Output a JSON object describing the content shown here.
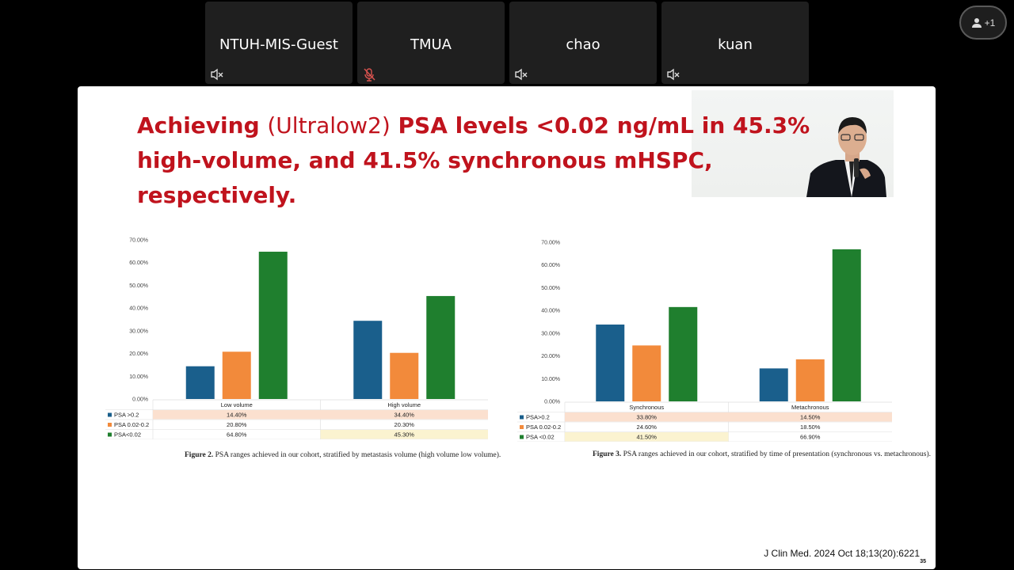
{
  "participants": [
    {
      "name": "NTUH-MIS-Guest",
      "audio": "speaker-muted-icon"
    },
    {
      "name": "TMUA",
      "audio": "mic-muted-icon",
      "audio_color": "#d9534f"
    },
    {
      "name": "chao",
      "audio": "speaker-muted-icon"
    },
    {
      "name": "kuan",
      "audio": "speaker-muted-icon"
    }
  ],
  "people_button": {
    "icon": "person-icon",
    "count": "+1"
  },
  "slide": {
    "title_bold_1": "Achieving ",
    "title_light": "(Ultralow2)",
    "title_bold_2": " PSA levels <0.02 ng/mL in 45.3% high-volume, and 41.5% synchronous mHSPC, respectively.",
    "title_color": "#c0131d",
    "citation": "J Clin Med. 2024 Oct 18;13(20):6221",
    "page_number": "35",
    "figure2_caption_label": "Figure 2.",
    "figure2_caption_text": " PSA ranges achieved in our cohort, stratified by metastasis volume (high volume low volume).",
    "figure3_caption_label": "Figure 3.",
    "figure3_caption_text": " PSA ranges achieved in our cohort, stratified by time of presentation (synchronous vs. metachronous)."
  },
  "series_colors": [
    "#1a5f8c",
    "#f28a3b",
    "#1f7f2e"
  ],
  "chart_data": [
    {
      "type": "bar",
      "categories": [
        "Low volume",
        "High volume"
      ],
      "series": [
        {
          "name": "PSA >0.2",
          "values": [
            14.4,
            34.4
          ],
          "labels": [
            "14.40%",
            "34.40%"
          ]
        },
        {
          "name": "PSA 0.02-0.2",
          "values": [
            20.8,
            20.3
          ],
          "labels": [
            "20.80%",
            "20.30%"
          ]
        },
        {
          "name": "PSA<0.02",
          "values": [
            64.8,
            45.3
          ],
          "labels": [
            "64.80%",
            "45.30%"
          ]
        }
      ],
      "ylim": [
        0,
        70
      ],
      "yticks": [
        "0.00%",
        "10.00%",
        "20.00%",
        "30.00%",
        "40.00%",
        "50.00%",
        "60.00%",
        "70.00%"
      ],
      "data_table": true
    },
    {
      "type": "bar",
      "categories": [
        "Synchronous",
        "Metachronous"
      ],
      "series": [
        {
          "name": "PSA>0.2",
          "values": [
            33.8,
            14.5
          ],
          "labels": [
            "33.80%",
            "14.50%"
          ]
        },
        {
          "name": "PSA 0.02-0.2",
          "values": [
            24.6,
            18.5
          ],
          "labels": [
            "24.60%",
            "18.50%"
          ]
        },
        {
          "name": "PSA <0.02",
          "values": [
            41.5,
            66.9
          ],
          "labels": [
            "41.50%",
            "66.90%"
          ]
        }
      ],
      "ylim": [
        0,
        70
      ],
      "yticks": [
        "0.00%",
        "10.00%",
        "20.00%",
        "30.00%",
        "40.00%",
        "50.00%",
        "60.00%",
        "70.00%"
      ],
      "data_table": true
    }
  ]
}
